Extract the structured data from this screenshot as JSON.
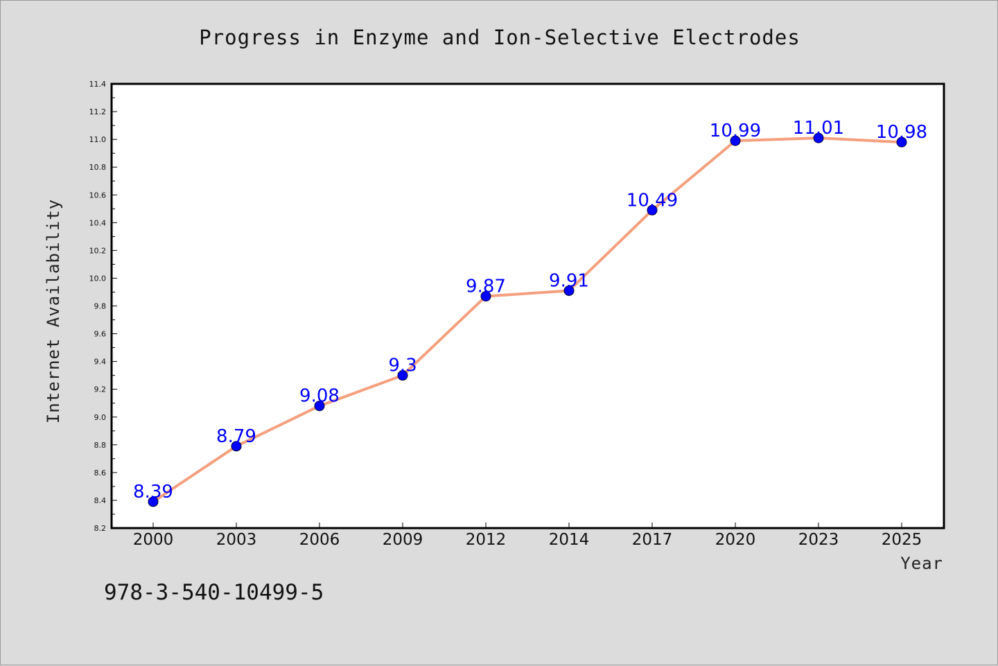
{
  "chart_data": {
    "type": "line",
    "title": "Progress in Enzyme and Ion-Selective Electrodes",
    "xlabel": "Year",
    "ylabel": "Internet Availability",
    "categories": [
      "2000",
      "2003",
      "2006",
      "2009",
      "2012",
      "2014",
      "2017",
      "2020",
      "2023",
      "2025"
    ],
    "series": [
      {
        "values": [
          8.39,
          8.79,
          9.08,
          9.3,
          9.87,
          9.91,
          10.49,
          10.99,
          11.01,
          10.98
        ],
        "data_labels": [
          "8.39",
          "8.79",
          "9.08",
          "9.3",
          "9.87",
          "9.91",
          "10.49",
          "10.99",
          "11.01",
          "10.98"
        ],
        "line_color": "#f4a07e",
        "marker_color": "#0000ff",
        "label_color": "#0000ff"
      }
    ],
    "ylim": [
      8.2,
      11.4
    ],
    "yticks": [
      "8.2",
      "8.4",
      "8.6",
      "8.8",
      "9.0",
      "9.2",
      "9.4",
      "9.6",
      "9.8",
      "10.0",
      "10.2",
      "10.4",
      "10.6",
      "10.8",
      "11.0",
      "11.2",
      "11.4"
    ],
    "grid": false,
    "legend": "none"
  },
  "footer": {
    "isbn": "978-3-540-10499-5"
  },
  "colors": {
    "page_background": "#dcdcdc",
    "plot_background": "#ffffff",
    "axes": "#000000"
  }
}
